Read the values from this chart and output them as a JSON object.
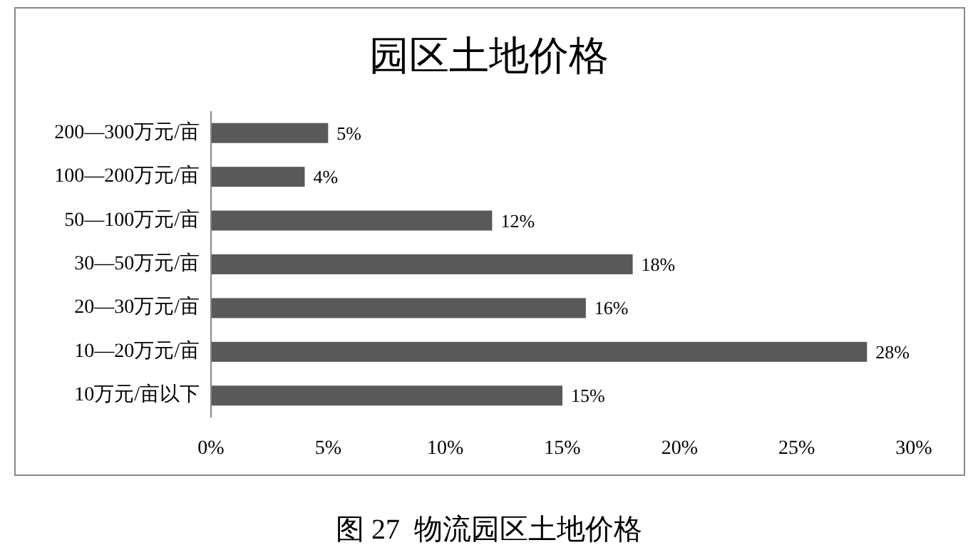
{
  "chart_data": {
    "type": "bar",
    "orientation": "horizontal",
    "title": "园区土地价格",
    "categories": [
      "200—300万元/亩",
      "100—200万元/亩",
      "50—100万元/亩",
      "30—50万元/亩",
      "20—30万元/亩",
      "10—20万元/亩",
      "10万元/亩以下"
    ],
    "values": [
      5,
      4,
      12,
      18,
      16,
      28,
      15
    ],
    "value_labels": [
      "5%",
      "4%",
      "12%",
      "18%",
      "16%",
      "28%",
      "15%"
    ],
    "color": "#595959",
    "xlim": [
      0,
      30
    ],
    "xticks": [
      {
        "value": 0,
        "label": "0%"
      },
      {
        "value": 5,
        "label": "5%"
      },
      {
        "value": 10,
        "label": "10%"
      },
      {
        "value": 15,
        "label": "15%"
      },
      {
        "value": 20,
        "label": "20%"
      },
      {
        "value": 25,
        "label": "25%"
      },
      {
        "value": 30,
        "label": "30%"
      }
    ],
    "annotations": [
      "图 27  物流园区土地价格"
    ]
  }
}
